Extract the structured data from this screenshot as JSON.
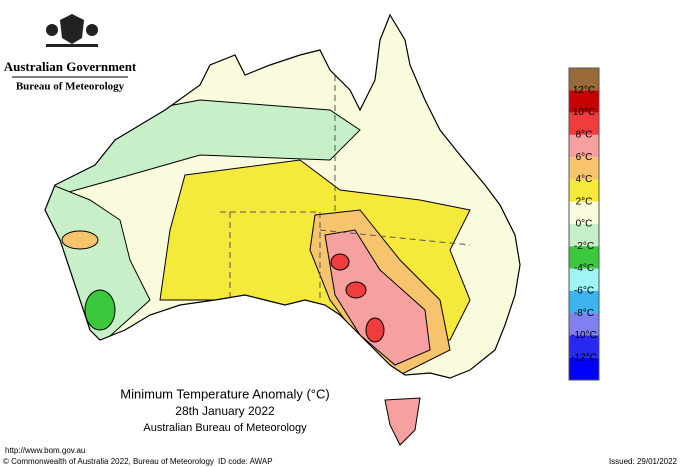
{
  "header": {
    "government": "Australian Government",
    "bureau": "Bureau of Meteorology"
  },
  "legend": {
    "colors": [
      "#9b6a3a",
      "#c80000",
      "#f03c3c",
      "#f7a0a0",
      "#f7c46e",
      "#f5e93c",
      "#fafadc",
      "#c8f0c8",
      "#3cc83c",
      "#a0f5f5",
      "#3cb4f0",
      "#8080f0",
      "#2828f0",
      "#0000ff"
    ],
    "labels": [
      "12°C",
      "10°C",
      "8°C",
      "6°C",
      "4°C",
      "2°C",
      "0°C",
      "-2°C",
      "-4°C",
      "-6°C",
      "-8°C",
      "-10°C",
      "-12°C"
    ]
  },
  "title": {
    "line1": "Minimum Temperature Anomaly (°C)",
    "line2": "28th January 2022",
    "line3": "Australian Bureau of Meteorology"
  },
  "footer": {
    "url": "http://www.bom.gov.au",
    "copyright": "© Commonwealth of Australia 2022, Bureau of Meteorology",
    "id": "ID code: AWAP",
    "issued": "Issued: 29/01/2022"
  }
}
